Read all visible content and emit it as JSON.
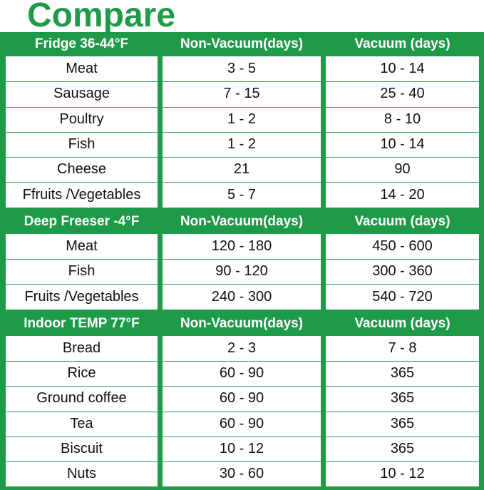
{
  "title": "Compare",
  "columns": {
    "non_vacuum": "Non-Vacuum(days)",
    "vacuum": "Vacuum (days)"
  },
  "sections": [
    {
      "header": "Fridge 36-44°F",
      "rows": [
        {
          "item": "Meat",
          "non_vacuum": "3 - 5",
          "vacuum": "10 - 14"
        },
        {
          "item": "Sausage",
          "non_vacuum": "7 - 15",
          "vacuum": "25 - 40"
        },
        {
          "item": "Poultry",
          "non_vacuum": "1 - 2",
          "vacuum": "8 - 10"
        },
        {
          "item": "Fish",
          "non_vacuum": "1 - 2",
          "vacuum": "10 - 14"
        },
        {
          "item": "Cheese",
          "non_vacuum": "21",
          "vacuum": "90"
        },
        {
          "item": "Ffruits /Vegetables",
          "non_vacuum": "5 - 7",
          "vacuum": "14 - 20"
        }
      ]
    },
    {
      "header": "Deep Freeser -4°F",
      "rows": [
        {
          "item": "Meat",
          "non_vacuum": "120 - 180",
          "vacuum": "450 - 600"
        },
        {
          "item": "Fish",
          "non_vacuum": "90 - 120",
          "vacuum": "300 - 360"
        },
        {
          "item": "Fruits /Vegetables",
          "non_vacuum": "240 - 300",
          "vacuum": "540 - 720"
        }
      ]
    },
    {
      "header": "Indoor TEMP 77°F",
      "rows": [
        {
          "item": "Bread",
          "non_vacuum": "2 - 3",
          "vacuum": "7 - 8"
        },
        {
          "item": "Rice",
          "non_vacuum": "60 - 90",
          "vacuum": "365"
        },
        {
          "item": "Ground coffee",
          "non_vacuum": "60 - 90",
          "vacuum": "365"
        },
        {
          "item": "Tea",
          "non_vacuum": "60 - 90",
          "vacuum": "365"
        },
        {
          "item": "Biscuit",
          "non_vacuum": "10 - 12",
          "vacuum": "365"
        },
        {
          "item": "Nuts",
          "non_vacuum": "30 - 60",
          "vacuum": "10 - 12"
        }
      ]
    }
  ],
  "colors": {
    "accent": "#1e9a48"
  }
}
